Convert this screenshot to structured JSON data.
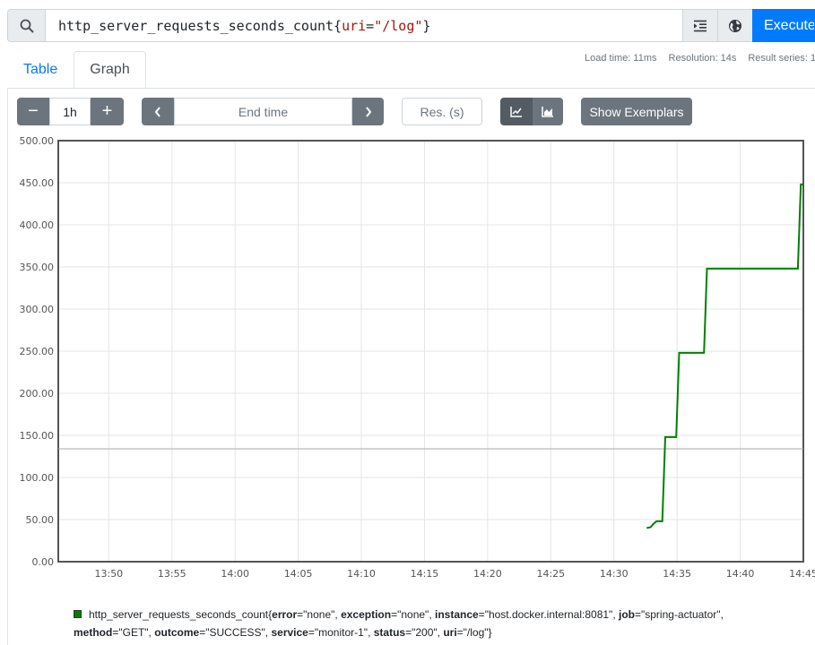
{
  "expression": {
    "metric": "http_server_requests_seconds_count",
    "open_brace": "{",
    "label_name": "uri",
    "equals": "=",
    "label_value": "\"/log\"",
    "close_brace": "}"
  },
  "execute_label": "Execute",
  "tabs": [
    {
      "label": "Table",
      "active": false
    },
    {
      "label": "Graph",
      "active": true
    }
  ],
  "stats": {
    "load_time": "Load time: 11ms",
    "resolution": "Resolution: 14s",
    "result_series": "Result series: 1"
  },
  "controls": {
    "decrease": "−",
    "range": "1h",
    "increase": "+",
    "end_time_placeholder": "End time",
    "res_placeholder": "Res. (s)",
    "show_exemplars": "Show Exemplars"
  },
  "icons": {
    "search": "search-icon",
    "format": "indent-icon",
    "metrics_explorer": "globe-icon",
    "prev": "chevron-left-icon",
    "next": "chevron-right-icon",
    "line_chart": "line-chart-icon",
    "stacked_chart": "area-chart-icon"
  },
  "colors": {
    "primary": "#007bff",
    "secondary": "#6c757d",
    "series": "#008000"
  },
  "chart_data": {
    "type": "line",
    "title": "",
    "xlabel": "",
    "ylabel": "",
    "ylim": [
      0,
      500
    ],
    "xlim": [
      "13:46:00",
      "14:45:00"
    ],
    "yticks": [
      "0.00",
      "50.00",
      "100.00",
      "150.00",
      "200.00",
      "250.00",
      "300.00",
      "350.00",
      "400.00",
      "450.00",
      "500.00"
    ],
    "xticks": [
      "13:50",
      "13:55",
      "14:00",
      "14:05",
      "14:10",
      "14:15",
      "14:20",
      "14:25",
      "14:30",
      "14:35",
      "14:40",
      "14:45"
    ],
    "grid": true,
    "step": true,
    "crosshair_y": 134,
    "series": [
      {
        "name": "http_server_requests_seconds_count{error=\"none\", exception=\"none\", instance=\"host.docker.internal:8081\", job=\"spring-actuator\", method=\"GET\", outcome=\"SUCCESS\", service=\"monitor-1\", status=\"200\", uri=\"/log\"}",
        "points": [
          [
            "14:32:36",
            40
          ],
          [
            "14:32:54",
            41
          ],
          [
            "14:33:08",
            45
          ],
          [
            "14:33:22",
            48
          ],
          [
            "14:33:50",
            48
          ],
          [
            "14:34:04",
            148
          ],
          [
            "14:34:56",
            148
          ],
          [
            "14:35:10",
            248
          ],
          [
            "14:37:08",
            248
          ],
          [
            "14:37:22",
            348
          ],
          [
            "14:44:34",
            348
          ],
          [
            "14:44:48",
            448
          ],
          [
            "14:45:00",
            448
          ]
        ]
      }
    ]
  },
  "legend": {
    "metric": "http_server_requests_seconds_count{",
    "labels": [
      {
        "k": "error",
        "v": "\"none\""
      },
      {
        "k": "exception",
        "v": "\"none\""
      },
      {
        "k": "instance",
        "v": "\"host.docker.internal:8081\""
      },
      {
        "k": "job",
        "v": "\"spring-actuator\""
      },
      {
        "k": "method",
        "v": "\"GET\""
      },
      {
        "k": "outcome",
        "v": "\"SUCCESS\""
      },
      {
        "k": "service",
        "v": "\"monitor-1\""
      },
      {
        "k": "status",
        "v": "\"200\""
      },
      {
        "k": "uri",
        "v": "\"/log\""
      }
    ],
    "close": "}"
  }
}
